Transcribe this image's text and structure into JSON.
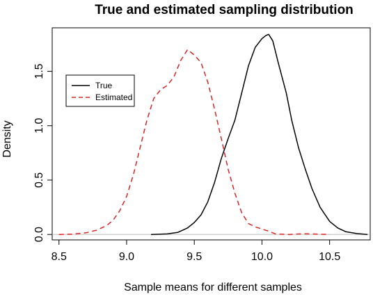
{
  "chart_data": {
    "type": "line",
    "title": "True and estimated sampling distribution",
    "xlabel": "Sample means for different samples",
    "ylabel": "Density",
    "xlim": [
      8.45,
      10.8
    ],
    "ylim": [
      -0.05,
      1.9
    ],
    "x_ticks": [
      8.5,
      9.0,
      9.5,
      10.0,
      10.5
    ],
    "x_tick_labels": [
      "8.5",
      "9.0",
      "9.5",
      "10.0",
      "10.5"
    ],
    "y_ticks": [
      0.0,
      0.5,
      1.0,
      1.5
    ],
    "y_tick_labels": [
      "0.0",
      "0.5",
      "1.0",
      "1.5"
    ],
    "grid": false,
    "baseline": 0,
    "legend": {
      "position": "top-left",
      "entries": [
        "True",
        "Estimated"
      ]
    },
    "series": [
      {
        "name": "True",
        "color": "#000000",
        "dash": "solid",
        "points": [
          [
            9.18,
            0.0
          ],
          [
            9.3,
            0.005
          ],
          [
            9.38,
            0.02
          ],
          [
            9.45,
            0.06
          ],
          [
            9.5,
            0.11
          ],
          [
            9.55,
            0.18
          ],
          [
            9.6,
            0.3
          ],
          [
            9.65,
            0.48
          ],
          [
            9.7,
            0.7
          ],
          [
            9.75,
            0.88
          ],
          [
            9.8,
            1.05
          ],
          [
            9.85,
            1.3
          ],
          [
            9.9,
            1.55
          ],
          [
            9.95,
            1.72
          ],
          [
            10.0,
            1.8
          ],
          [
            10.03,
            1.83
          ],
          [
            10.05,
            1.84
          ],
          [
            10.08,
            1.78
          ],
          [
            10.12,
            1.58
          ],
          [
            10.18,
            1.3
          ],
          [
            10.22,
            1.05
          ],
          [
            10.27,
            0.8
          ],
          [
            10.32,
            0.6
          ],
          [
            10.37,
            0.42
          ],
          [
            10.43,
            0.25
          ],
          [
            10.5,
            0.12
          ],
          [
            10.56,
            0.06
          ],
          [
            10.62,
            0.025
          ],
          [
            10.7,
            0.008
          ],
          [
            10.78,
            0.0
          ]
        ]
      },
      {
        "name": "Estimated",
        "color": "#dd2222",
        "dash": "dashed",
        "points": [
          [
            8.5,
            0.0
          ],
          [
            8.6,
            0.003
          ],
          [
            8.7,
            0.015
          ],
          [
            8.78,
            0.04
          ],
          [
            8.85,
            0.08
          ],
          [
            8.9,
            0.13
          ],
          [
            8.95,
            0.22
          ],
          [
            9.0,
            0.35
          ],
          [
            9.05,
            0.55
          ],
          [
            9.1,
            0.8
          ],
          [
            9.15,
            1.05
          ],
          [
            9.2,
            1.25
          ],
          [
            9.25,
            1.33
          ],
          [
            9.3,
            1.37
          ],
          [
            9.35,
            1.45
          ],
          [
            9.4,
            1.6
          ],
          [
            9.45,
            1.7
          ],
          [
            9.5,
            1.65
          ],
          [
            9.55,
            1.58
          ],
          [
            9.6,
            1.4
          ],
          [
            9.65,
            1.15
          ],
          [
            9.7,
            0.88
          ],
          [
            9.75,
            0.6
          ],
          [
            9.8,
            0.38
          ],
          [
            9.85,
            0.2
          ],
          [
            9.9,
            0.1
          ],
          [
            9.95,
            0.07
          ],
          [
            10.0,
            0.05
          ],
          [
            10.05,
            0.03
          ],
          [
            10.1,
            0.005
          ],
          [
            10.2,
            0.0
          ],
          [
            10.3,
            0.006
          ],
          [
            10.4,
            0.004
          ],
          [
            10.5,
            0.0
          ]
        ]
      }
    ]
  }
}
